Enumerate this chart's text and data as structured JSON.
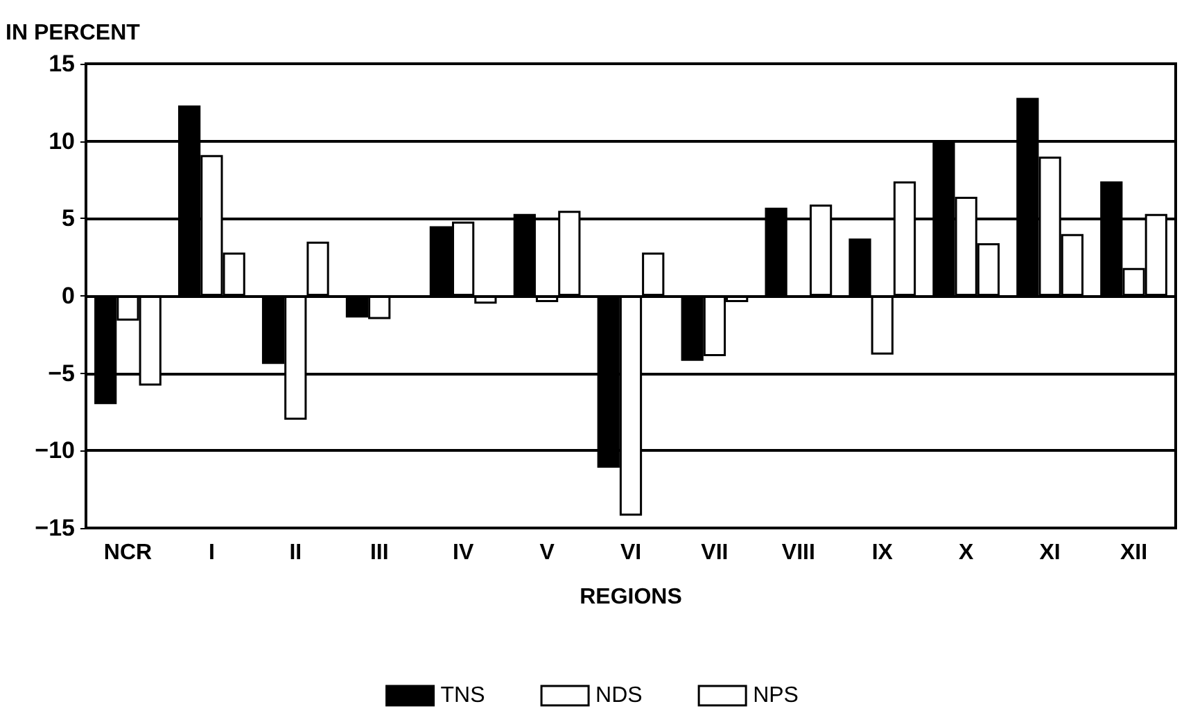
{
  "chart_data": {
    "type": "bar",
    "ylabel": "IN PERCENT",
    "xlabel": "REGIONS",
    "categories": [
      "NCR",
      "I",
      "II",
      "III",
      "IV",
      "V",
      "VI",
      "VII",
      "VIII",
      "IX",
      "X",
      "XI",
      "XII"
    ],
    "series": [
      {
        "name": "TNS",
        "color": "#000000",
        "values": [
          -7.0,
          12.3,
          -4.4,
          -1.4,
          4.5,
          5.3,
          -11.1,
          -4.2,
          5.7,
          3.7,
          10.0,
          12.8,
          7.4
        ]
      },
      {
        "name": "NDS",
        "color": "#ffffff",
        "values": [
          -1.6,
          9.1,
          -8.0,
          -1.5,
          4.8,
          -0.4,
          -14.2,
          -3.9,
          null,
          -3.8,
          6.4,
          9.0,
          1.8
        ]
      },
      {
        "name": "NPS",
        "color": "#ffffff",
        "values": [
          -5.8,
          2.8,
          3.5,
          null,
          -0.5,
          5.5,
          2.8,
          -0.4,
          5.9,
          7.4,
          3.4,
          4.0,
          5.3
        ]
      }
    ],
    "ylim": [
      -15,
      15
    ],
    "yticks": [
      -15,
      -10,
      -5,
      0,
      5,
      10,
      15
    ],
    "grid": "y",
    "legend": "bottom"
  }
}
